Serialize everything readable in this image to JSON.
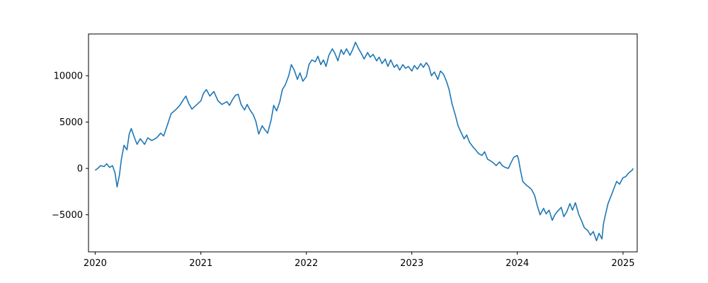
{
  "chart_data": {
    "type": "line",
    "title": "",
    "xlabel": "",
    "ylabel": "",
    "grid": false,
    "xlim": [
      "2019-12-09",
      "2025-02-19"
    ],
    "ylim": [
      -9000,
      14500
    ],
    "x_ticks": [
      {
        "date": "2020-01-01",
        "label": "2020"
      },
      {
        "date": "2021-01-01",
        "label": "2021"
      },
      {
        "date": "2022-01-01",
        "label": "2022"
      },
      {
        "date": "2023-01-01",
        "label": "2023"
      },
      {
        "date": "2024-01-01",
        "label": "2024"
      },
      {
        "date": "2025-01-01",
        "label": "2025"
      }
    ],
    "y_ticks": [
      {
        "value": -5000,
        "label": "−5000"
      },
      {
        "value": 0,
        "label": "0"
      },
      {
        "value": 5000,
        "label": "5000"
      },
      {
        "value": 10000,
        "label": "10000"
      }
    ],
    "series": [
      {
        "color": "#1f77b4",
        "points": [
          [
            "2020-01-01",
            -200
          ],
          [
            "2020-01-10",
            0
          ],
          [
            "2020-01-20",
            300
          ],
          [
            "2020-02-01",
            200
          ],
          [
            "2020-02-10",
            500
          ],
          [
            "2020-02-20",
            100
          ],
          [
            "2020-03-01",
            300
          ],
          [
            "2020-03-10",
            -500
          ],
          [
            "2020-03-17",
            -2000
          ],
          [
            "2020-03-25",
            -700
          ],
          [
            "2020-04-01",
            1000
          ],
          [
            "2020-04-10",
            2500
          ],
          [
            "2020-04-20",
            2000
          ],
          [
            "2020-04-28",
            3700
          ],
          [
            "2020-05-05",
            4300
          ],
          [
            "2020-05-15",
            3400
          ],
          [
            "2020-05-25",
            2600
          ],
          [
            "2020-06-05",
            3200
          ],
          [
            "2020-06-20",
            2600
          ],
          [
            "2020-07-01",
            3300
          ],
          [
            "2020-07-15",
            3000
          ],
          [
            "2020-08-01",
            3300
          ],
          [
            "2020-08-15",
            3800
          ],
          [
            "2020-08-25",
            3500
          ],
          [
            "2020-09-05",
            4500
          ],
          [
            "2020-09-20",
            5900
          ],
          [
            "2020-10-05",
            6300
          ],
          [
            "2020-10-20",
            6800
          ],
          [
            "2020-11-01",
            7400
          ],
          [
            "2020-11-10",
            7800
          ],
          [
            "2020-11-20",
            7000
          ],
          [
            "2020-12-01",
            6400
          ],
          [
            "2020-12-15",
            6800
          ],
          [
            "2021-01-01",
            7300
          ],
          [
            "2021-01-10",
            8100
          ],
          [
            "2021-01-20",
            8500
          ],
          [
            "2021-02-01",
            7800
          ],
          [
            "2021-02-15",
            8300
          ],
          [
            "2021-03-01",
            7300
          ],
          [
            "2021-03-15",
            6900
          ],
          [
            "2021-04-01",
            7200
          ],
          [
            "2021-04-10",
            6800
          ],
          [
            "2021-04-20",
            7400
          ],
          [
            "2021-05-01",
            7900
          ],
          [
            "2021-05-10",
            8000
          ],
          [
            "2021-05-20",
            6900
          ],
          [
            "2021-06-01",
            6300
          ],
          [
            "2021-06-10",
            6900
          ],
          [
            "2021-06-20",
            6300
          ],
          [
            "2021-07-01",
            5800
          ],
          [
            "2021-07-10",
            5100
          ],
          [
            "2021-07-20",
            3700
          ],
          [
            "2021-08-01",
            4600
          ],
          [
            "2021-08-10",
            4200
          ],
          [
            "2021-08-20",
            3800
          ],
          [
            "2021-09-01",
            5200
          ],
          [
            "2021-09-10",
            6800
          ],
          [
            "2021-09-20",
            6200
          ],
          [
            "2021-10-01",
            7200
          ],
          [
            "2021-10-10",
            8500
          ],
          [
            "2021-10-20",
            9000
          ],
          [
            "2021-11-01",
            10000
          ],
          [
            "2021-11-10",
            11200
          ],
          [
            "2021-11-20",
            10600
          ],
          [
            "2021-12-01",
            9600
          ],
          [
            "2021-12-10",
            10300
          ],
          [
            "2021-12-20",
            9400
          ],
          [
            "2022-01-01",
            9900
          ],
          [
            "2022-01-10",
            11200
          ],
          [
            "2022-01-20",
            11700
          ],
          [
            "2022-02-01",
            11500
          ],
          [
            "2022-02-10",
            12100
          ],
          [
            "2022-02-20",
            11200
          ],
          [
            "2022-03-01",
            11700
          ],
          [
            "2022-03-10",
            11000
          ],
          [
            "2022-03-20",
            12200
          ],
          [
            "2022-04-01",
            12900
          ],
          [
            "2022-04-10",
            12400
          ],
          [
            "2022-04-20",
            11600
          ],
          [
            "2022-05-01",
            12800
          ],
          [
            "2022-05-10",
            12300
          ],
          [
            "2022-05-20",
            12900
          ],
          [
            "2022-06-01",
            12200
          ],
          [
            "2022-06-10",
            12800
          ],
          [
            "2022-06-20",
            13600
          ],
          [
            "2022-07-01",
            12900
          ],
          [
            "2022-07-10",
            12400
          ],
          [
            "2022-07-20",
            11800
          ],
          [
            "2022-08-01",
            12500
          ],
          [
            "2022-08-10",
            12000
          ],
          [
            "2022-08-20",
            12300
          ],
          [
            "2022-09-01",
            11600
          ],
          [
            "2022-09-10",
            12000
          ],
          [
            "2022-09-20",
            11300
          ],
          [
            "2022-10-01",
            11800
          ],
          [
            "2022-10-10",
            11000
          ],
          [
            "2022-10-20",
            11700
          ],
          [
            "2022-11-01",
            10900
          ],
          [
            "2022-11-10",
            11200
          ],
          [
            "2022-11-20",
            10600
          ],
          [
            "2022-12-01",
            11200
          ],
          [
            "2022-12-10",
            10800
          ],
          [
            "2022-12-20",
            11000
          ],
          [
            "2023-01-01",
            10500
          ],
          [
            "2023-01-10",
            11100
          ],
          [
            "2023-01-20",
            10700
          ],
          [
            "2023-02-01",
            11300
          ],
          [
            "2023-02-10",
            10900
          ],
          [
            "2023-02-20",
            11400
          ],
          [
            "2023-03-01",
            11000
          ],
          [
            "2023-03-10",
            10000
          ],
          [
            "2023-03-20",
            10400
          ],
          [
            "2023-04-01",
            9600
          ],
          [
            "2023-04-10",
            10500
          ],
          [
            "2023-04-20",
            10200
          ],
          [
            "2023-05-01",
            9400
          ],
          [
            "2023-05-10",
            8500
          ],
          [
            "2023-05-20",
            7000
          ],
          [
            "2023-06-01",
            5700
          ],
          [
            "2023-06-10",
            4600
          ],
          [
            "2023-06-20",
            3900
          ],
          [
            "2023-07-01",
            3200
          ],
          [
            "2023-07-10",
            3600
          ],
          [
            "2023-07-20",
            2800
          ],
          [
            "2023-08-01",
            2300
          ],
          [
            "2023-08-10",
            2000
          ],
          [
            "2023-08-20",
            1600
          ],
          [
            "2023-09-01",
            1400
          ],
          [
            "2023-09-10",
            1800
          ],
          [
            "2023-09-20",
            1000
          ],
          [
            "2023-10-01",
            800
          ],
          [
            "2023-10-10",
            600
          ],
          [
            "2023-10-20",
            300
          ],
          [
            "2023-11-01",
            700
          ],
          [
            "2023-11-10",
            300
          ],
          [
            "2023-11-20",
            100
          ],
          [
            "2023-12-01",
            0
          ],
          [
            "2023-12-10",
            600
          ],
          [
            "2023-12-20",
            1200
          ],
          [
            "2024-01-01",
            1400
          ],
          [
            "2024-01-05",
            1000
          ],
          [
            "2024-01-12",
            -200
          ],
          [
            "2024-01-20",
            -1400
          ],
          [
            "2024-02-01",
            -1800
          ],
          [
            "2024-02-10",
            -2000
          ],
          [
            "2024-02-20",
            -2300
          ],
          [
            "2024-03-01",
            -2900
          ],
          [
            "2024-03-10",
            -4000
          ],
          [
            "2024-03-20",
            -5000
          ],
          [
            "2024-04-01",
            -4300
          ],
          [
            "2024-04-10",
            -4900
          ],
          [
            "2024-04-20",
            -4500
          ],
          [
            "2024-05-01",
            -5600
          ],
          [
            "2024-05-10",
            -5000
          ],
          [
            "2024-05-20",
            -4600
          ],
          [
            "2024-06-01",
            -4200
          ],
          [
            "2024-06-10",
            -5200
          ],
          [
            "2024-06-20",
            -4700
          ],
          [
            "2024-07-01",
            -3800
          ],
          [
            "2024-07-10",
            -4500
          ],
          [
            "2024-07-20",
            -3700
          ],
          [
            "2024-08-01",
            -5000
          ],
          [
            "2024-08-10",
            -5600
          ],
          [
            "2024-08-20",
            -6400
          ],
          [
            "2024-09-01",
            -6700
          ],
          [
            "2024-09-10",
            -7200
          ],
          [
            "2024-09-20",
            -6800
          ],
          [
            "2024-10-01",
            -7800
          ],
          [
            "2024-10-10",
            -7000
          ],
          [
            "2024-10-20",
            -7600
          ],
          [
            "2024-10-25",
            -6000
          ],
          [
            "2024-11-01",
            -5000
          ],
          [
            "2024-11-10",
            -3800
          ],
          [
            "2024-11-20",
            -3000
          ],
          [
            "2024-12-01",
            -2100
          ],
          [
            "2024-12-10",
            -1400
          ],
          [
            "2024-12-20",
            -1700
          ],
          [
            "2025-01-01",
            -1000
          ],
          [
            "2025-01-10",
            -900
          ],
          [
            "2025-01-20",
            -500
          ],
          [
            "2025-02-01",
            -200
          ],
          [
            "2025-02-05",
            0
          ]
        ]
      }
    ]
  }
}
